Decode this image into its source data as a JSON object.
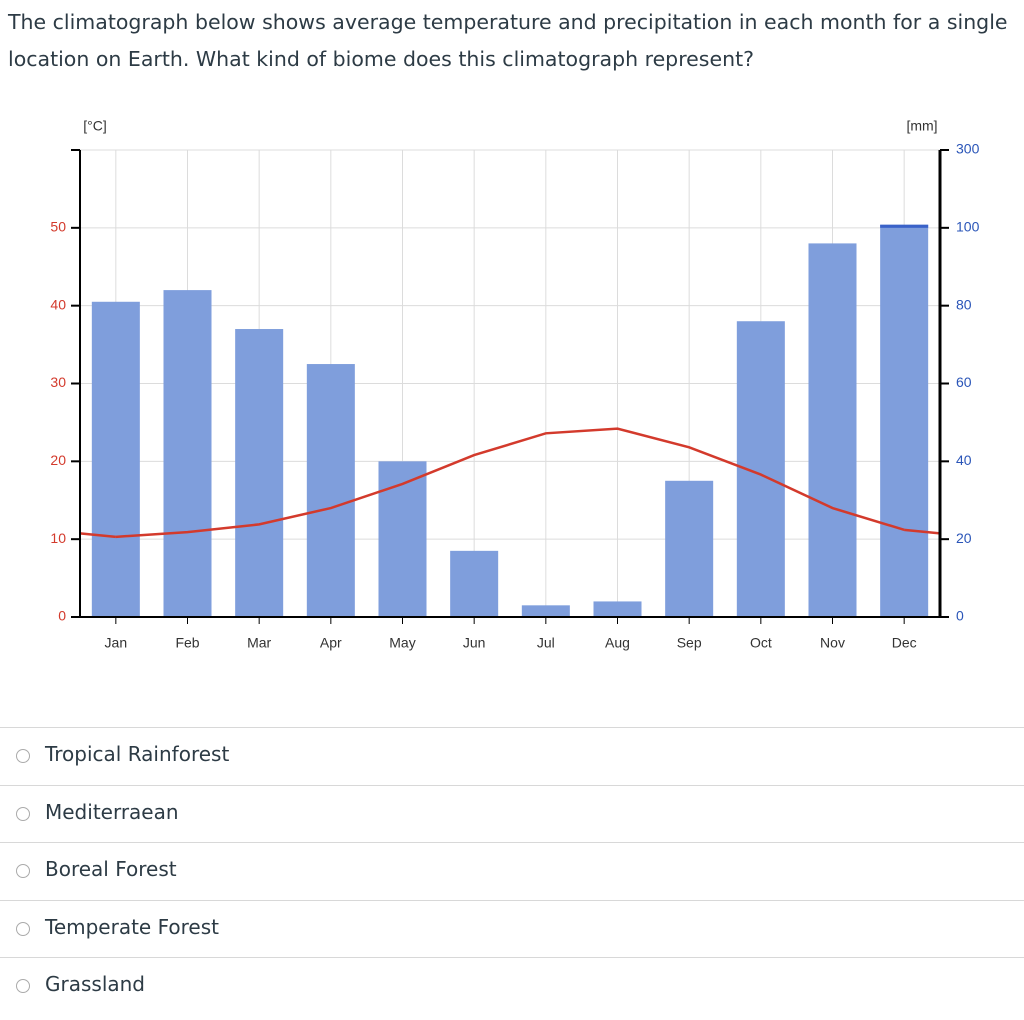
{
  "question": "The climatograph below shows average temperature and precipitation in each month for a single location on Earth. What kind of biome does this climatograph represent?",
  "chart_data": {
    "type": "climatograph",
    "ylabel": "[°C]",
    "y2label": "[mm]",
    "categories": [
      "Jan",
      "Feb",
      "Mar",
      "Apr",
      "May",
      "Jun",
      "Jul",
      "Aug",
      "Sep",
      "Oct",
      "Nov",
      "Dec"
    ],
    "series": [
      {
        "name": "Precipitation",
        "kind": "bar",
        "axis": "y2",
        "color": "#7f9edc",
        "values": [
          81,
          84,
          74,
          65,
          40,
          17,
          3,
          4,
          35,
          76,
          96,
          108
        ]
      },
      {
        "name": "Temperature",
        "kind": "line",
        "color": "#d33a2c",
        "values": [
          10.3,
          10.9,
          11.9,
          14.0,
          17.1,
          20.8,
          23.6,
          24.2,
          21.8,
          18.3,
          14.0,
          11.2
        ]
      }
    ],
    "ylim": [
      0,
      60
    ],
    "yticks": [
      0,
      10,
      20,
      30,
      40,
      50
    ],
    "y2lim": [
      0,
      300
    ],
    "y2ticks": [
      0,
      20,
      40,
      60,
      80,
      100,
      300
    ],
    "grid": true
  },
  "options": [
    "Tropical Rainforest",
    "Mediterraean",
    "Boreal Forest",
    "Temperate Forest",
    "Grassland"
  ]
}
